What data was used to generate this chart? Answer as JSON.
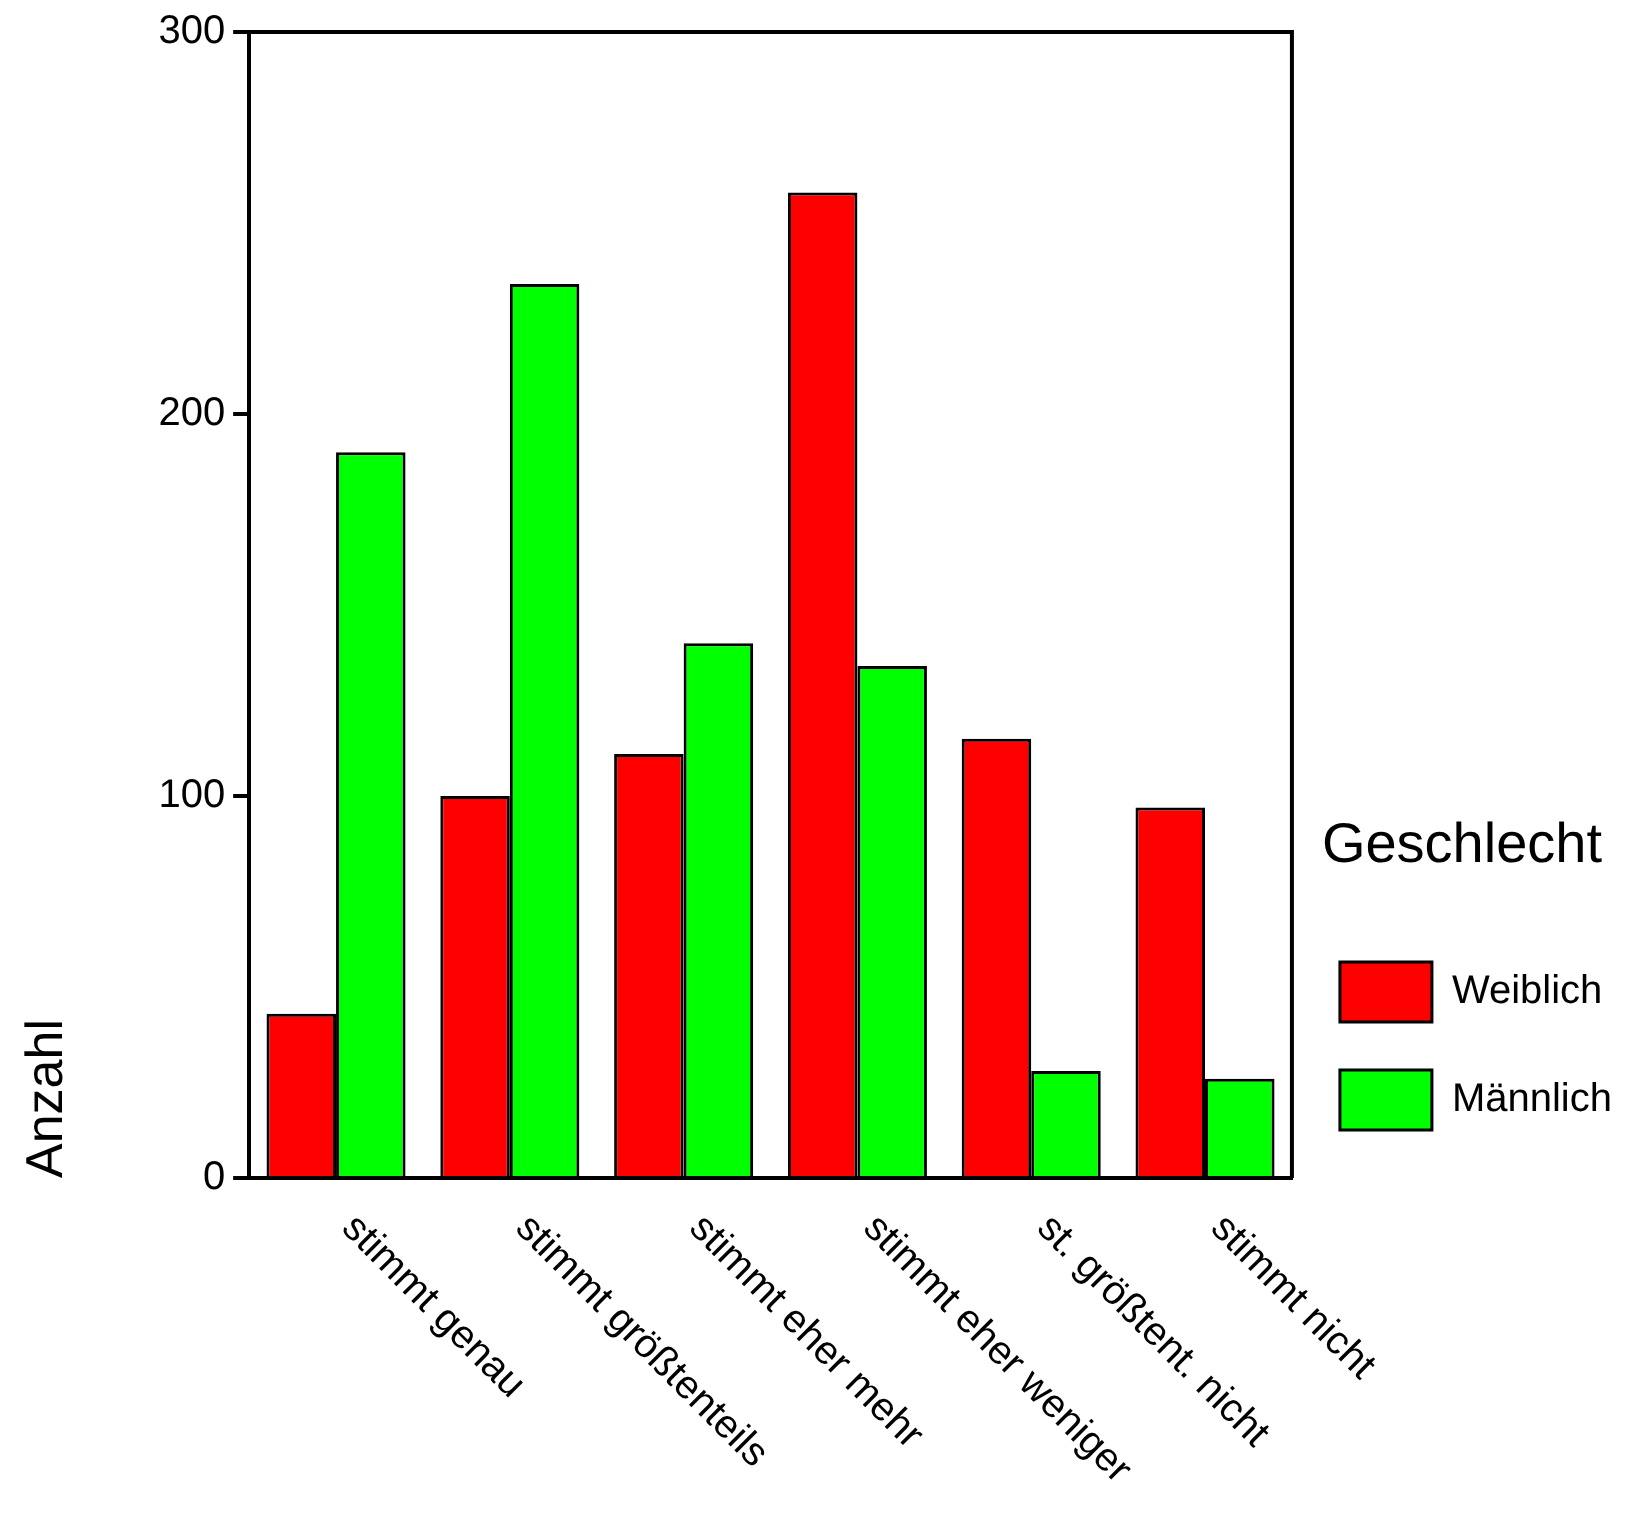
{
  "chart_data": {
    "type": "bar",
    "ylabel": "Anzahl",
    "legend_title": "Geschlecht",
    "legend": "right",
    "categories": [
      "stimmt genau",
      "stimmt größtenteils",
      "stimmt eher mehr",
      "stimmt eher weniger",
      "st. größtent. nicht",
      "stimmt nicht"
    ],
    "series": [
      {
        "name": "Weiblich",
        "color": "#ff0000",
        "values": [
          43,
          100,
          111,
          258,
          115,
          97
        ]
      },
      {
        "name": "Männlich",
        "color": "#00ff00",
        "values": [
          190,
          234,
          140,
          134,
          28,
          26
        ]
      }
    ],
    "ylim": [
      0,
      300
    ],
    "yticks": [
      0,
      100,
      200,
      300
    ],
    "grid": false
  }
}
